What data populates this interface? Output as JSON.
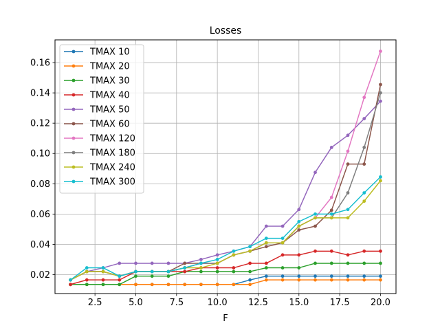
{
  "chart_data": {
    "type": "line",
    "title": "Losses",
    "xlabel": "F",
    "ylabel": "",
    "xlim": [
      0.05,
      20.95
    ],
    "ylim": [
      0.0075,
      0.175
    ],
    "xticks": [
      2.5,
      5.0,
      7.5,
      10.0,
      12.5,
      15.0,
      17.5,
      20.0
    ],
    "xtick_labels": [
      "2.5",
      "5.0",
      "7.5",
      "10.0",
      "12.5",
      "15.0",
      "17.5",
      "20.0"
    ],
    "yticks": [
      0.02,
      0.04,
      0.06,
      0.08,
      0.1,
      0.12,
      0.14,
      0.16
    ],
    "ytick_labels": [
      "0.02",
      "0.04",
      "0.06",
      "0.08",
      "0.10",
      "0.12",
      "0.14",
      "0.16"
    ],
    "grid": true,
    "legend_position": "upper-left",
    "x": [
      1,
      2,
      3,
      4,
      5,
      6,
      7,
      8,
      9,
      10,
      11,
      12,
      13,
      14,
      15,
      16,
      17,
      18,
      19,
      20
    ],
    "series": [
      {
        "name": "TMAX 10",
        "color": "#1f77b4",
        "values": [
          0.0135,
          0.0135,
          0.0135,
          0.0135,
          0.0135,
          0.0135,
          0.0135,
          0.0135,
          0.0135,
          0.0135,
          0.0135,
          0.0165,
          0.019,
          0.019,
          0.019,
          0.019,
          0.019,
          0.019,
          0.019,
          0.019
        ]
      },
      {
        "name": "TMAX 20",
        "color": "#ff7f0e",
        "values": [
          0.0135,
          0.0135,
          0.0135,
          0.0135,
          0.0135,
          0.0135,
          0.0135,
          0.0135,
          0.0135,
          0.0135,
          0.0135,
          0.0135,
          0.0165,
          0.0165,
          0.0165,
          0.0165,
          0.0165,
          0.0165,
          0.0165,
          0.0165
        ]
      },
      {
        "name": "TMAX 30",
        "color": "#2ca02c",
        "values": [
          0.0135,
          0.0135,
          0.0135,
          0.0135,
          0.019,
          0.019,
          0.019,
          0.022,
          0.022,
          0.022,
          0.022,
          0.022,
          0.0245,
          0.0245,
          0.0245,
          0.0275,
          0.0275,
          0.0275,
          0.0275,
          0.0275
        ]
      },
      {
        "name": "TMAX 40",
        "color": "#d62728",
        "values": [
          0.0135,
          0.0165,
          0.0165,
          0.0165,
          0.022,
          0.022,
          0.022,
          0.022,
          0.0245,
          0.0245,
          0.0245,
          0.0275,
          0.0275,
          0.033,
          0.033,
          0.0355,
          0.0355,
          0.033,
          0.0355,
          0.0355
        ]
      },
      {
        "name": "TMAX 50",
        "color": "#9467bd",
        "values": [
          0.0165,
          0.022,
          0.0245,
          0.0275,
          0.0275,
          0.0275,
          0.0275,
          0.0275,
          0.03,
          0.033,
          0.0355,
          0.0385,
          0.052,
          0.052,
          0.063,
          0.0875,
          0.104,
          0.112,
          0.123,
          0.1345
        ]
      },
      {
        "name": "TMAX 60",
        "color": "#8c564b",
        "values": [
          0.0165,
          0.022,
          0.022,
          0.019,
          0.022,
          0.022,
          0.022,
          0.0275,
          0.0275,
          0.0275,
          0.033,
          0.0355,
          0.0385,
          0.041,
          0.0495,
          0.052,
          0.0625,
          0.093,
          0.093,
          0.1455
        ]
      },
      {
        "name": "TMAX 120",
        "color": "#e377c2",
        "values": [
          0.0165,
          0.022,
          0.022,
          0.019,
          0.022,
          0.022,
          0.022,
          0.0245,
          0.0275,
          0.0275,
          0.033,
          0.0355,
          0.041,
          0.041,
          0.052,
          0.0575,
          0.071,
          0.1015,
          0.137,
          0.1675
        ]
      },
      {
        "name": "TMAX 180",
        "color": "#7f7f7f",
        "values": [
          0.0165,
          0.022,
          0.022,
          0.019,
          0.022,
          0.022,
          0.022,
          0.0245,
          0.0275,
          0.0275,
          0.033,
          0.0355,
          0.041,
          0.041,
          0.052,
          0.0575,
          0.0575,
          0.074,
          0.104,
          0.14
        ]
      },
      {
        "name": "TMAX 240",
        "color": "#bcbd22",
        "values": [
          0.0165,
          0.022,
          0.022,
          0.019,
          0.022,
          0.022,
          0.022,
          0.0245,
          0.0245,
          0.0275,
          0.033,
          0.0355,
          0.041,
          0.041,
          0.052,
          0.0575,
          0.0575,
          0.0575,
          0.0685,
          0.082
        ]
      },
      {
        "name": "TMAX 300",
        "color": "#17becf",
        "values": [
          0.0165,
          0.0245,
          0.0245,
          0.019,
          0.022,
          0.022,
          0.022,
          0.0245,
          0.0275,
          0.03,
          0.0355,
          0.0385,
          0.044,
          0.044,
          0.055,
          0.06,
          0.06,
          0.063,
          0.074,
          0.0845
        ]
      }
    ]
  }
}
